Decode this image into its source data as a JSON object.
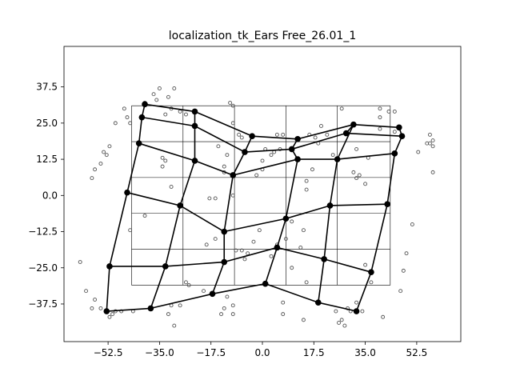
{
  "chart_data": {
    "type": "scatter",
    "title": "localization_tk_Ears Free_26.01_1",
    "xlabel": "",
    "ylabel": "",
    "xlim": [
      -67.5,
      67.5
    ],
    "ylim": [
      -50.5,
      51.5
    ],
    "xticks": [
      -52.5,
      -35.0,
      -17.5,
      0.0,
      17.5,
      35.0,
      52.5
    ],
    "xtick_labels": [
      "−52.5",
      "−35.0",
      "−17.5",
      "0.0",
      "17.5",
      "35.0",
      "52.5"
    ],
    "yticks": [
      -37.5,
      -25.0,
      -12.5,
      0.0,
      12.5,
      25.0,
      37.5
    ],
    "ytick_labels": [
      "−37.5",
      "−25.0",
      "−12.5",
      "0.0",
      "12.5",
      "25.0",
      "37.5"
    ],
    "reference_grid": {
      "x_edges": [
        -44.5,
        -27,
        -9.5,
        8,
        25.5,
        43.5
      ],
      "y_edges": [
        31,
        18.6,
        6.2,
        -6.2,
        -18.6,
        -31
      ]
    },
    "mesh_nodes": [
      [
        -40,
        31.5
      ],
      [
        -41,
        27
      ],
      [
        -42,
        18
      ],
      [
        -46,
        1
      ],
      [
        -52,
        -24.5
      ],
      [
        -53,
        -40
      ],
      [
        -23,
        29
      ],
      [
        -23,
        24
      ],
      [
        -23,
        12
      ],
      [
        -28,
        -3.5
      ],
      [
        -33,
        -24.5
      ],
      [
        -38,
        -39
      ],
      [
        -3.5,
        20.5
      ],
      [
        -6,
        15
      ],
      [
        -10,
        7
      ],
      [
        -13,
        -12.5
      ],
      [
        -13,
        -23
      ],
      [
        -17,
        -34
      ],
      [
        12,
        19.5
      ],
      [
        10,
        16
      ],
      [
        12,
        12.5
      ],
      [
        8,
        -8
      ],
      [
        5,
        -18
      ],
      [
        1,
        -30.5
      ],
      [
        28.5,
        21.5
      ],
      [
        31,
        24.5
      ],
      [
        25.5,
        12.5
      ],
      [
        23,
        -3.5
      ],
      [
        21,
        -22
      ],
      [
        19,
        -37
      ],
      [
        46.5,
        23.5
      ],
      [
        47.5,
        20.5
      ],
      [
        45,
        14.5
      ],
      [
        42.5,
        -3
      ],
      [
        37,
        -26.5
      ],
      [
        32,
        -40
      ]
    ],
    "mesh_edges": [
      [
        0,
        1
      ],
      [
        1,
        2
      ],
      [
        2,
        3
      ],
      [
        3,
        4
      ],
      [
        4,
        5
      ],
      [
        6,
        7
      ],
      [
        7,
        8
      ],
      [
        8,
        9
      ],
      [
        9,
        10
      ],
      [
        10,
        11
      ],
      [
        12,
        13
      ],
      [
        13,
        14
      ],
      [
        14,
        15
      ],
      [
        15,
        16
      ],
      [
        16,
        17
      ],
      [
        18,
        19
      ],
      [
        19,
        20
      ],
      [
        20,
        21
      ],
      [
        21,
        22
      ],
      [
        22,
        23
      ],
      [
        24,
        25
      ],
      [
        25,
        26
      ],
      [
        26,
        27
      ],
      [
        27,
        28
      ],
      [
        28,
        29
      ],
      [
        30,
        31
      ],
      [
        31,
        32
      ],
      [
        32,
        33
      ],
      [
        33,
        34
      ],
      [
        34,
        35
      ],
      [
        0,
        6
      ],
      [
        6,
        12
      ],
      [
        12,
        18
      ],
      [
        18,
        25
      ],
      [
        25,
        30
      ],
      [
        1,
        7
      ],
      [
        7,
        13
      ],
      [
        13,
        19
      ],
      [
        19,
        24
      ],
      [
        24,
        31
      ],
      [
        2,
        8
      ],
      [
        8,
        14
      ],
      [
        14,
        20
      ],
      [
        20,
        26
      ],
      [
        26,
        32
      ],
      [
        3,
        9
      ],
      [
        9,
        15
      ],
      [
        15,
        21
      ],
      [
        21,
        27
      ],
      [
        27,
        33
      ],
      [
        4,
        10
      ],
      [
        10,
        16
      ],
      [
        16,
        22
      ],
      [
        22,
        28
      ],
      [
        28,
        34
      ],
      [
        5,
        11
      ],
      [
        11,
        17
      ],
      [
        17,
        23
      ],
      [
        23,
        29
      ],
      [
        29,
        35
      ]
    ],
    "scatter_points": [
      [
        -35,
        37
      ],
      [
        -32,
        34
      ],
      [
        -37,
        35
      ],
      [
        -30,
        37
      ],
      [
        -33,
        28
      ],
      [
        -31,
        30
      ],
      [
        -28,
        29
      ],
      [
        -26,
        28
      ],
      [
        -36,
        33
      ],
      [
        -40,
        32
      ],
      [
        -47,
        30
      ],
      [
        -50,
        25
      ],
      [
        -46,
        27
      ],
      [
        -45,
        25
      ],
      [
        -52,
        17
      ],
      [
        -54,
        15
      ],
      [
        -55,
        11
      ],
      [
        -57,
        9
      ],
      [
        -58,
        6
      ],
      [
        -53,
        14
      ],
      [
        -34,
        13
      ],
      [
        -33,
        12
      ],
      [
        -34,
        10
      ],
      [
        -31,
        3
      ],
      [
        -45,
        -12
      ],
      [
        -40,
        -7
      ],
      [
        -18,
        -1
      ],
      [
        -16,
        -1
      ],
      [
        -10,
        0
      ],
      [
        -19,
        -17
      ],
      [
        -16,
        -15
      ],
      [
        -12,
        14
      ],
      [
        -13,
        10
      ],
      [
        -13,
        8
      ],
      [
        -15,
        17
      ],
      [
        -8,
        21
      ],
      [
        -10,
        25
      ],
      [
        -11,
        32
      ],
      [
        -10,
        31
      ],
      [
        -7,
        20
      ],
      [
        5,
        21
      ],
      [
        7,
        21
      ],
      [
        3,
        14
      ],
      [
        6,
        16
      ],
      [
        0,
        9
      ],
      [
        0,
        12
      ],
      [
        -2,
        7
      ],
      [
        4,
        15
      ],
      [
        1,
        16
      ],
      [
        16,
        21
      ],
      [
        18,
        20
      ],
      [
        19,
        18
      ],
      [
        20,
        24
      ],
      [
        17,
        9
      ],
      [
        22,
        21
      ],
      [
        15,
        5
      ],
      [
        15,
        2
      ],
      [
        24,
        14
      ],
      [
        27,
        30
      ],
      [
        31,
        8
      ],
      [
        32,
        6
      ],
      [
        33,
        7
      ],
      [
        35,
        4
      ],
      [
        36,
        13
      ],
      [
        32,
        16
      ],
      [
        43,
        29
      ],
      [
        40,
        27
      ],
      [
        40,
        30
      ],
      [
        40,
        23
      ],
      [
        45,
        29
      ],
      [
        45,
        22
      ],
      [
        53,
        15
      ],
      [
        57,
        21
      ],
      [
        57,
        18
      ],
      [
        58,
        19
      ],
      [
        58,
        17
      ],
      [
        56,
        18
      ],
      [
        58,
        8
      ],
      [
        51,
        -10
      ],
      [
        49,
        -20
      ],
      [
        48,
        -26
      ],
      [
        47,
        -33
      ],
      [
        37,
        -30
      ],
      [
        35,
        -24
      ],
      [
        32,
        -37
      ],
      [
        29,
        -39
      ],
      [
        30,
        -40
      ],
      [
        27,
        -43
      ],
      [
        26,
        -44
      ],
      [
        28,
        -45
      ],
      [
        25,
        -40
      ],
      [
        34,
        -40
      ],
      [
        41,
        -42
      ],
      [
        13,
        -18
      ],
      [
        14,
        -12
      ],
      [
        15,
        -30
      ],
      [
        10,
        -25
      ],
      [
        8,
        -15
      ],
      [
        7,
        -37
      ],
      [
        7,
        -41
      ],
      [
        14,
        -43
      ],
      [
        10,
        -9
      ],
      [
        5,
        -17
      ],
      [
        3,
        -21
      ],
      [
        -3,
        -16
      ],
      [
        -1,
        -12
      ],
      [
        -5,
        -20
      ],
      [
        -6,
        -22
      ],
      [
        -7,
        -19
      ],
      [
        -9,
        -19
      ],
      [
        -12,
        -35
      ],
      [
        -13,
        -39
      ],
      [
        -10,
        -38
      ],
      [
        -10,
        -41
      ],
      [
        -14,
        -41
      ],
      [
        -20,
        -33
      ],
      [
        -25,
        -31
      ],
      [
        -26,
        -30
      ],
      [
        -28,
        -38
      ],
      [
        -31,
        -38
      ],
      [
        -30,
        -45
      ],
      [
        -32,
        -41
      ],
      [
        -44,
        -40
      ],
      [
        -48,
        -40
      ],
      [
        -50,
        -40
      ],
      [
        -51,
        -41
      ],
      [
        -52,
        -42
      ],
      [
        -55,
        -39
      ],
      [
        -57,
        -36
      ],
      [
        -58,
        -39
      ],
      [
        -60,
        -33
      ],
      [
        -62,
        -23
      ]
    ]
  }
}
